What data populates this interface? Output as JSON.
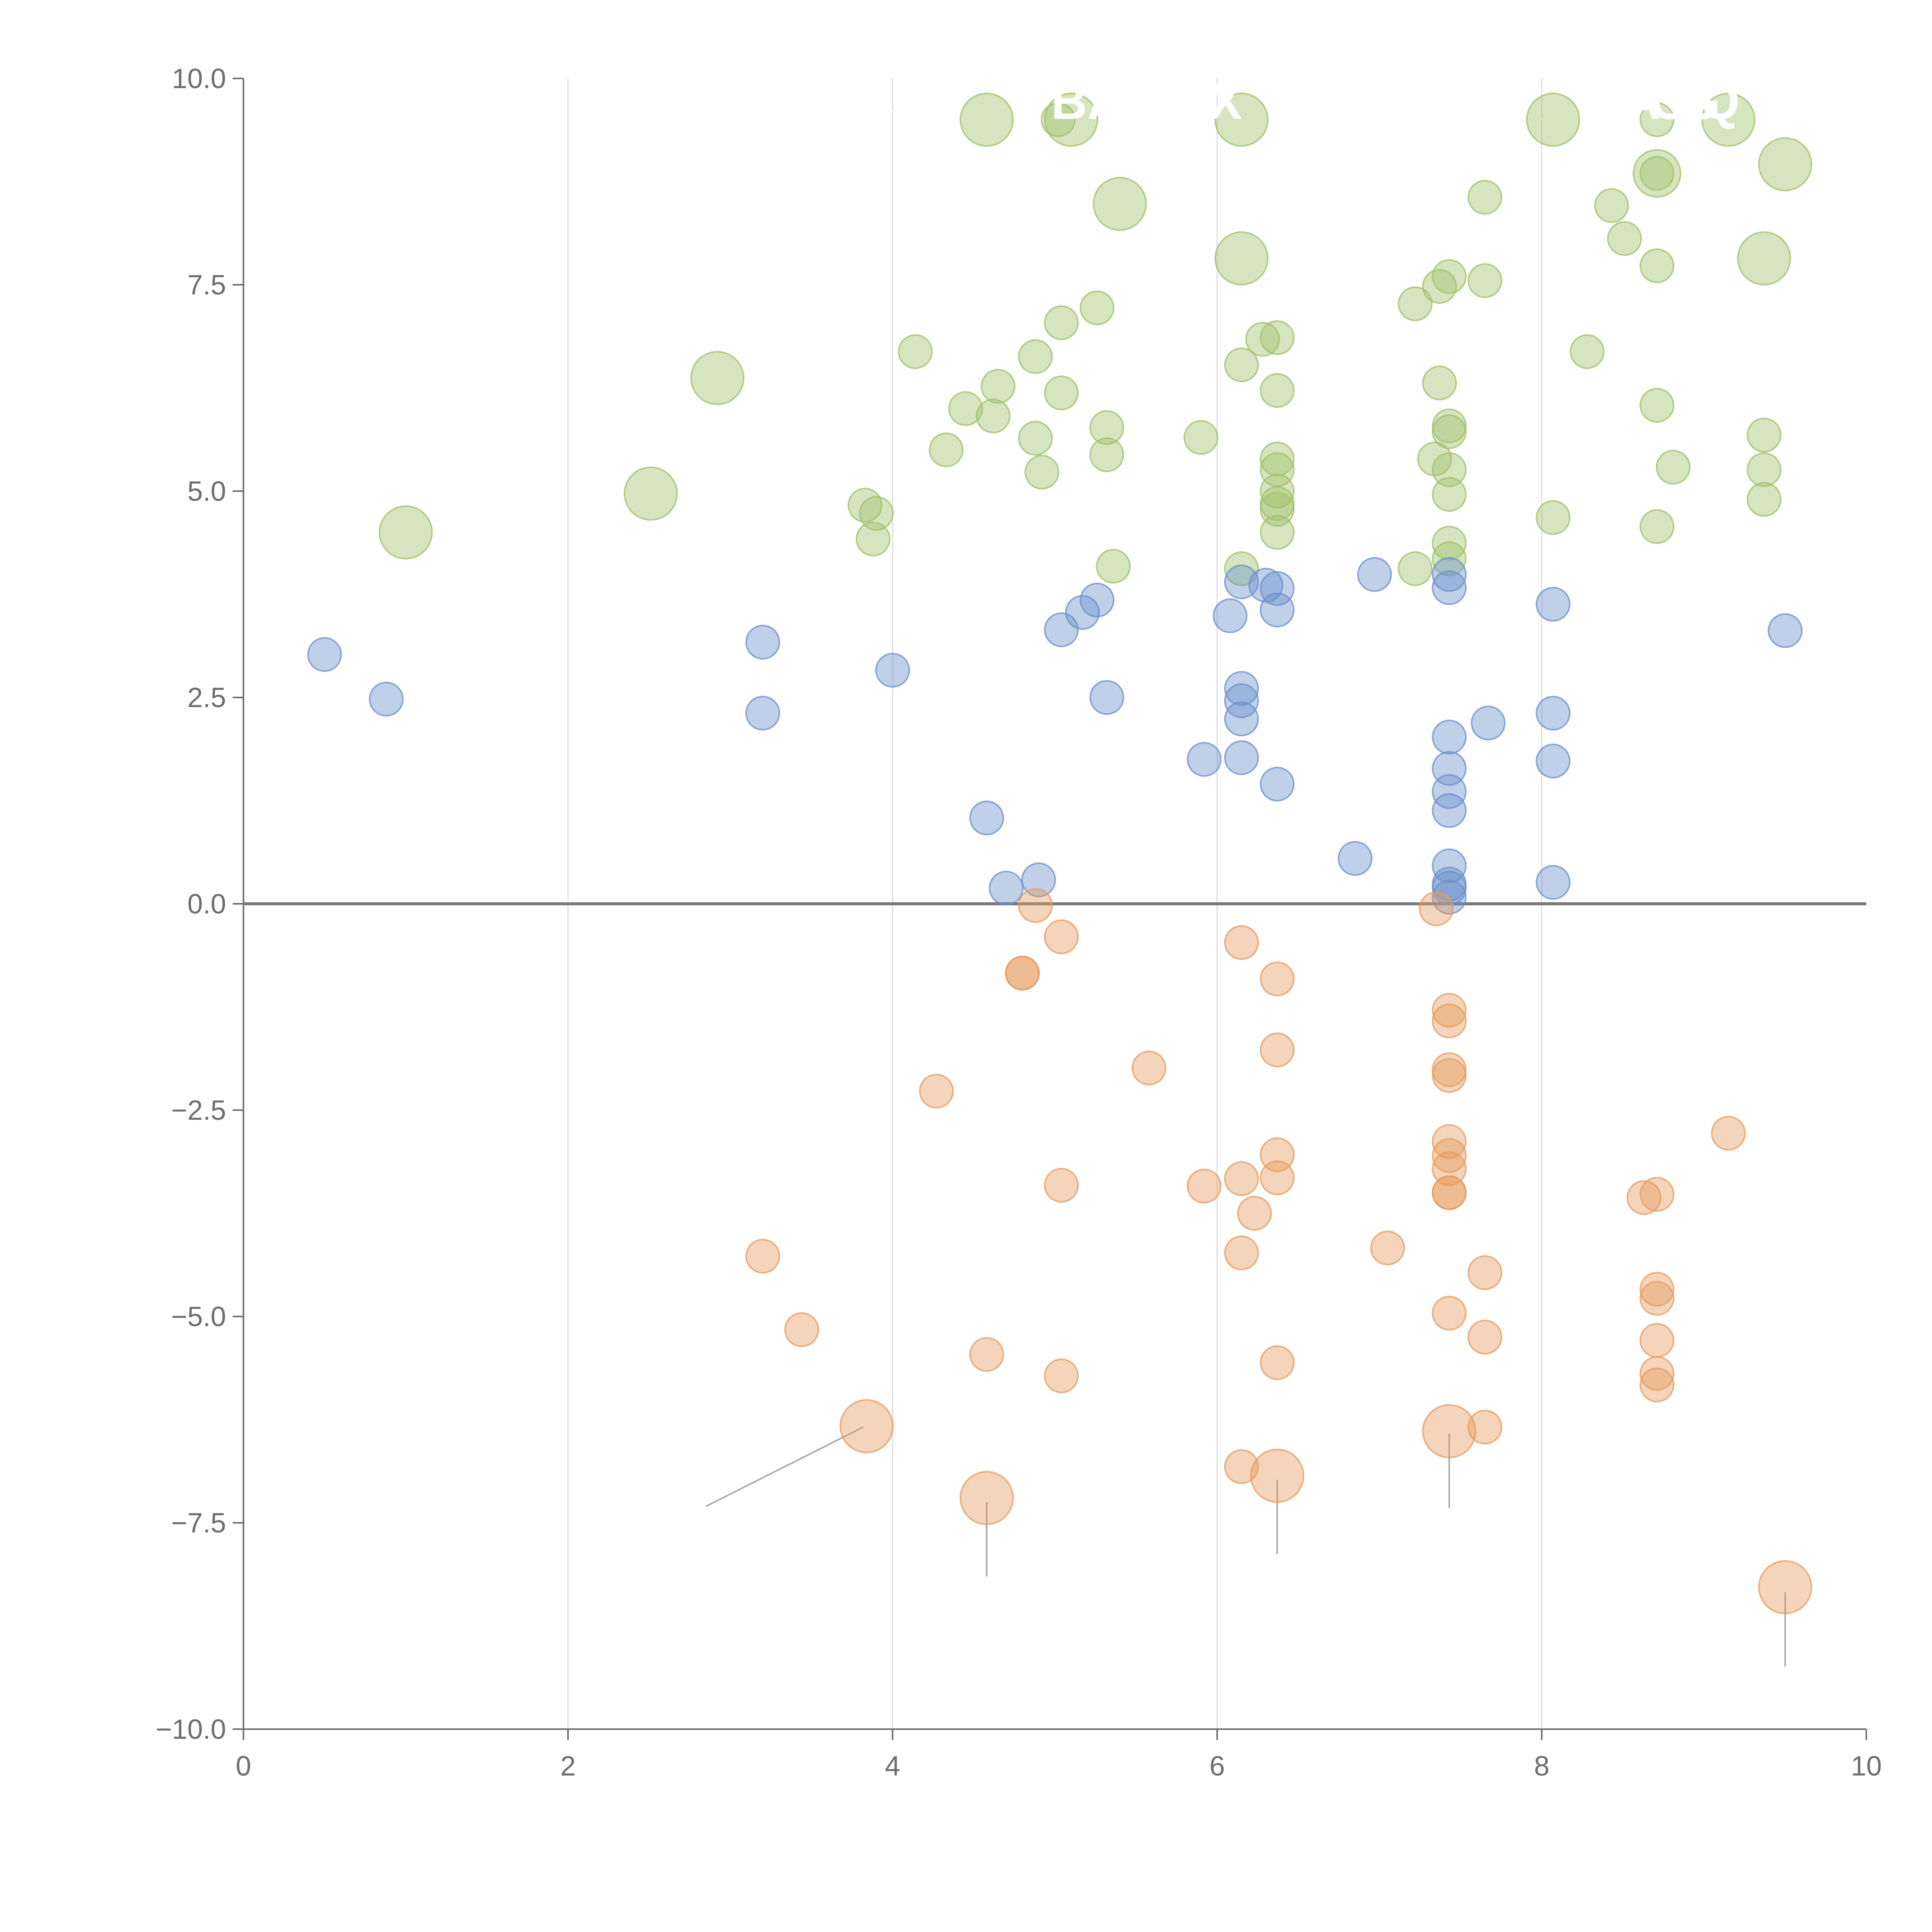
{
  "chart_data": {
    "type": "scatter",
    "subtype": "bubble",
    "title": "",
    "xlabel": "",
    "ylabel": "",
    "xlim": [
      0,
      10
    ],
    "ylim": [
      -10,
      10
    ],
    "x_ticks": [
      "0",
      "2",
      "4",
      "6",
      "8",
      "10"
    ],
    "y_ticks": [
      "10.0",
      "7.5",
      "5.0",
      "2.5",
      "0.0",
      "−2.5",
      "−5.0",
      "−7.5",
      "−10.0"
    ],
    "x_tick_values": [
      0,
      2,
      4,
      6,
      8,
      10
    ],
    "y_tick_values": [
      10,
      7.5,
      5,
      2.5,
      0,
      -2.5,
      -5,
      -7.5,
      -10
    ],
    "vertical_gridlines": [
      2,
      4,
      6,
      8
    ],
    "zero_line": 0,
    "colors": {
      "green": "#9dc06a",
      "blue": "#6a8fcb",
      "orange": "#e59a5e",
      "axis": "#6e6e6e",
      "grid": "#dcdcdc",
      "zero_line": "#7a7a7a",
      "leader": "#a8a8a8"
    },
    "series": [
      {
        "name": "green",
        "color": "#9dc06a",
        "points": [
          [
            4.58,
            9.5,
            1
          ],
          [
            5.1,
            9.5,
            1
          ],
          [
            6.15,
            9.5,
            1
          ],
          [
            8.07,
            9.5,
            1
          ],
          [
            9.15,
            9.5,
            1
          ],
          [
            9.5,
            8.96,
            1
          ],
          [
            8.71,
            8.85,
            0.8
          ],
          [
            5.4,
            8.48,
            1
          ],
          [
            6.15,
            7.82,
            1
          ],
          [
            9.37,
            7.82,
            1
          ],
          [
            2.92,
            6.37,
            1
          ],
          [
            2.51,
            4.97,
            1
          ],
          [
            1.0,
            4.5,
            1
          ],
          [
            5.02,
            9.5,
            0.4
          ],
          [
            8.71,
            9.5,
            0.4
          ],
          [
            8.71,
            8.85,
            0.4
          ],
          [
            7.65,
            8.56,
            0.4
          ],
          [
            8.43,
            8.46,
            0.4
          ],
          [
            8.51,
            8.06,
            0.4
          ],
          [
            8.71,
            7.73,
            0.4
          ],
          [
            7.43,
            7.6,
            0.4
          ],
          [
            7.37,
            7.48,
            0.4
          ],
          [
            7.65,
            7.55,
            0.4
          ],
          [
            7.22,
            7.27,
            0.4
          ],
          [
            5.26,
            7.22,
            0.4
          ],
          [
            5.04,
            7.04,
            0.4
          ],
          [
            6.28,
            6.84,
            0.4
          ],
          [
            6.37,
            6.86,
            0.4
          ],
          [
            8.28,
            6.69,
            0.4
          ],
          [
            4.14,
            6.69,
            0.4
          ],
          [
            4.88,
            6.63,
            0.4
          ],
          [
            6.15,
            6.53,
            0.4
          ],
          [
            4.65,
            6.27,
            0.4
          ],
          [
            6.37,
            6.22,
            0.4
          ],
          [
            5.04,
            6.19,
            0.4
          ],
          [
            7.37,
            6.31,
            0.4
          ],
          [
            8.71,
            6.04,
            0.4
          ],
          [
            4.45,
            6.0,
            0.4
          ],
          [
            4.62,
            5.91,
            0.4
          ],
          [
            5.32,
            5.77,
            0.4
          ],
          [
            7.43,
            5.79,
            0.4
          ],
          [
            7.43,
            5.72,
            0.4
          ],
          [
            9.37,
            5.68,
            0.4
          ],
          [
            5.9,
            5.65,
            0.4
          ],
          [
            4.88,
            5.64,
            0.4
          ],
          [
            4.33,
            5.5,
            0.4
          ],
          [
            5.32,
            5.44,
            0.4
          ],
          [
            7.34,
            5.39,
            0.4
          ],
          [
            6.37,
            5.39,
            0.4
          ],
          [
            8.81,
            5.29,
            0.4
          ],
          [
            9.37,
            5.26,
            0.4
          ],
          [
            6.37,
            5.26,
            0.4
          ],
          [
            7.43,
            5.26,
            0.4
          ],
          [
            4.92,
            5.23,
            0.4
          ],
          [
            6.37,
            5.0,
            0.4
          ],
          [
            7.43,
            4.96,
            0.4
          ],
          [
            9.37,
            4.9,
            0.4
          ],
          [
            6.37,
            4.85,
            0.4
          ],
          [
            6.37,
            4.78,
            0.4
          ],
          [
            3.83,
            4.83,
            0.4
          ],
          [
            3.9,
            4.73,
            0.4
          ],
          [
            8.07,
            4.68,
            0.4
          ],
          [
            8.71,
            4.57,
            0.4
          ],
          [
            6.37,
            4.5,
            0.4
          ],
          [
            3.88,
            4.42,
            0.4
          ],
          [
            7.43,
            4.37,
            0.4
          ],
          [
            7.43,
            4.18,
            0.4
          ],
          [
            7.22,
            4.06,
            0.4
          ],
          [
            5.36,
            4.09,
            0.4
          ],
          [
            6.15,
            4.06,
            0.4
          ]
        ]
      },
      {
        "name": "blue",
        "color": "#6a8fcb",
        "points": [
          [
            6.97,
            3.99,
            0.4
          ],
          [
            7.43,
            3.99,
            0.4
          ],
          [
            6.15,
            3.9,
            0.4
          ],
          [
            6.3,
            3.86,
            0.4
          ],
          [
            7.43,
            3.83,
            0.4
          ],
          [
            6.37,
            3.82,
            0.4
          ],
          [
            5.26,
            3.68,
            0.4
          ],
          [
            8.07,
            3.63,
            0.4
          ],
          [
            6.37,
            3.56,
            0.4
          ],
          [
            5.17,
            3.53,
            0.4
          ],
          [
            6.08,
            3.49,
            0.4
          ],
          [
            5.04,
            3.32,
            0.4
          ],
          [
            9.5,
            3.31,
            0.4
          ],
          [
            3.2,
            3.17,
            0.4
          ],
          [
            0.5,
            3.02,
            0.4
          ],
          [
            4.0,
            2.83,
            0.4
          ],
          [
            6.15,
            2.61,
            0.4
          ],
          [
            0.88,
            2.48,
            0.4
          ],
          [
            5.32,
            2.5,
            0.4
          ],
          [
            6.15,
            2.46,
            0.4
          ],
          [
            3.2,
            2.31,
            0.4
          ],
          [
            8.07,
            2.31,
            0.4
          ],
          [
            6.15,
            2.24,
            0.4
          ],
          [
            7.67,
            2.19,
            0.4
          ],
          [
            7.43,
            2.02,
            0.4
          ],
          [
            5.92,
            1.75,
            0.4
          ],
          [
            6.15,
            1.77,
            0.4
          ],
          [
            8.07,
            1.73,
            0.4
          ],
          [
            7.43,
            1.64,
            0.4
          ],
          [
            6.37,
            1.45,
            0.4
          ],
          [
            7.43,
            1.36,
            0.4
          ],
          [
            7.43,
            1.13,
            0.4
          ],
          [
            4.58,
            1.04,
            0.4
          ],
          [
            6.85,
            0.55,
            0.4
          ],
          [
            7.43,
            0.46,
            0.4
          ],
          [
            4.9,
            0.29,
            0.4
          ],
          [
            8.07,
            0.26,
            0.4
          ],
          [
            7.43,
            0.24,
            0.4
          ],
          [
            7.43,
            0.19,
            0.4
          ],
          [
            4.7,
            0.19,
            0.4
          ],
          [
            7.43,
            0.08,
            0.4
          ]
        ]
      },
      {
        "name": "orange",
        "color": "#e59a5e",
        "points": [
          [
            3.84,
            -6.33,
            1
          ],
          [
            4.58,
            -7.2,
            1
          ],
          [
            6.37,
            -6.93,
            1
          ],
          [
            7.43,
            -6.39,
            1
          ],
          [
            9.5,
            -8.28,
            1
          ],
          [
            4.88,
            -0.02,
            0.4
          ],
          [
            7.35,
            -0.06,
            0.4
          ],
          [
            5.04,
            -0.4,
            0.4
          ],
          [
            6.15,
            -0.47,
            0.4
          ],
          [
            4.8,
            -0.84,
            0.4
          ],
          [
            4.8,
            -0.84,
            0.4
          ],
          [
            6.37,
            -0.91,
            0.4
          ],
          [
            7.43,
            -1.29,
            0.4
          ],
          [
            7.43,
            -1.42,
            0.4
          ],
          [
            6.37,
            -1.77,
            0.4
          ],
          [
            5.58,
            -1.99,
            0.4
          ],
          [
            7.43,
            -2.01,
            0.4
          ],
          [
            7.43,
            -2.08,
            0.4
          ],
          [
            4.27,
            -2.27,
            0.4
          ],
          [
            9.15,
            -2.78,
            0.4
          ],
          [
            7.43,
            -2.88,
            0.4
          ],
          [
            6.37,
            -3.04,
            0.4
          ],
          [
            7.43,
            -3.05,
            0.4
          ],
          [
            7.43,
            -3.21,
            0.4
          ],
          [
            6.15,
            -3.33,
            0.4
          ],
          [
            6.37,
            -3.32,
            0.4
          ],
          [
            5.04,
            -3.41,
            0.4
          ],
          [
            5.92,
            -3.42,
            0.4
          ],
          [
            7.43,
            -3.5,
            0.4
          ],
          [
            7.43,
            -3.5,
            0.4
          ],
          [
            8.71,
            -3.52,
            0.4
          ],
          [
            8.63,
            -3.56,
            0.4
          ],
          [
            6.23,
            -3.75,
            0.4
          ],
          [
            7.05,
            -4.17,
            0.4
          ],
          [
            6.15,
            -4.23,
            0.4
          ],
          [
            3.2,
            -4.27,
            0.4
          ],
          [
            7.65,
            -4.47,
            0.4
          ],
          [
            8.71,
            -4.67,
            0.4
          ],
          [
            8.71,
            -4.78,
            0.4
          ],
          [
            7.43,
            -4.96,
            0.4
          ],
          [
            3.44,
            -5.16,
            0.4
          ],
          [
            7.65,
            -5.25,
            0.4
          ],
          [
            8.71,
            -5.29,
            0.4
          ],
          [
            4.58,
            -5.46,
            0.4
          ],
          [
            6.37,
            -5.56,
            0.4
          ],
          [
            8.71,
            -5.69,
            0.4
          ],
          [
            5.04,
            -5.72,
            0.4
          ],
          [
            8.71,
            -5.83,
            0.4
          ],
          [
            7.65,
            -6.34,
            0.4
          ],
          [
            6.15,
            -6.82,
            0.4
          ]
        ]
      }
    ],
    "leader_lines": [
      {
        "color": "#a8a8a8",
        "from": [
          3.82,
          -6.34
        ],
        "to": [
          2.85,
          -7.3
        ]
      },
      {
        "color": "#a8a8a8",
        "from": [
          4.58,
          -7.25
        ],
        "to": [
          4.58,
          -8.15
        ]
      },
      {
        "color": "#a8a8a8",
        "from": [
          6.37,
          -6.98
        ],
        "to": [
          6.37,
          -7.88
        ]
      },
      {
        "color": "#a8a8a8",
        "from": [
          7.43,
          -6.42
        ],
        "to": [
          7.43,
          -7.32
        ]
      },
      {
        "color": "#a8a8a8",
        "from": [
          9.5,
          -8.34
        ],
        "to": [
          9.5,
          -9.24
        ]
      },
      {
        "color": "#ffffff",
        "from": [
          4.54,
          9.52
        ],
        "to": [
          4.0,
          9.6
        ]
      },
      {
        "color": "#ffffff",
        "from": [
          5.14,
          9.53
        ],
        "to": [
          5.3,
          9.6
        ]
      },
      {
        "color": "#ffffff",
        "from": [
          6.12,
          9.53
        ],
        "to": [
          6.0,
          9.6
        ]
      },
      {
        "color": "#ffffff",
        "from": [
          8.04,
          9.5
        ],
        "to": [
          7.7,
          9.56
        ]
      },
      {
        "color": "#ffffff",
        "from": [
          9.18,
          9.47
        ],
        "to": [
          9.2,
          9.56
        ]
      },
      {
        "color": "#ffffff",
        "from": [
          9.48,
          9.0
        ],
        "to": [
          9.4,
          9.2
        ]
      },
      {
        "color": "#ffffff",
        "from": [
          5.42,
          8.45
        ],
        "to": [
          5.5,
          8.15
        ]
      },
      {
        "color": "#ffffff",
        "from": [
          6.18,
          7.8
        ],
        "to": [
          5.92,
          7.85
        ]
      },
      {
        "color": "#ffffff",
        "from": [
          9.37,
          7.8
        ],
        "to": [
          9.25,
          8.05
        ]
      },
      {
        "color": "#ffffff",
        "from": [
          2.95,
          6.4
        ],
        "to": [
          3.1,
          6.65
        ]
      },
      {
        "color": "#ffffff",
        "from": [
          2.55,
          5.0
        ],
        "to": [
          2.7,
          5.05
        ]
      }
    ],
    "labels": [
      {
        "text": "BA",
        "x": 5.2,
        "y": 9.72
      },
      {
        "text": "X",
        "x": 6.05,
        "y": 9.72
      },
      {
        "text": "A",
        "x": 8.62,
        "y": 9.72
      },
      {
        "text": "C",
        "x": 8.78,
        "y": 9.72
      },
      {
        "text": "G",
        "x": 8.98,
        "y": 9.72
      },
      {
        "text": "Q",
        "x": 9.1,
        "y": 9.72
      }
    ]
  }
}
